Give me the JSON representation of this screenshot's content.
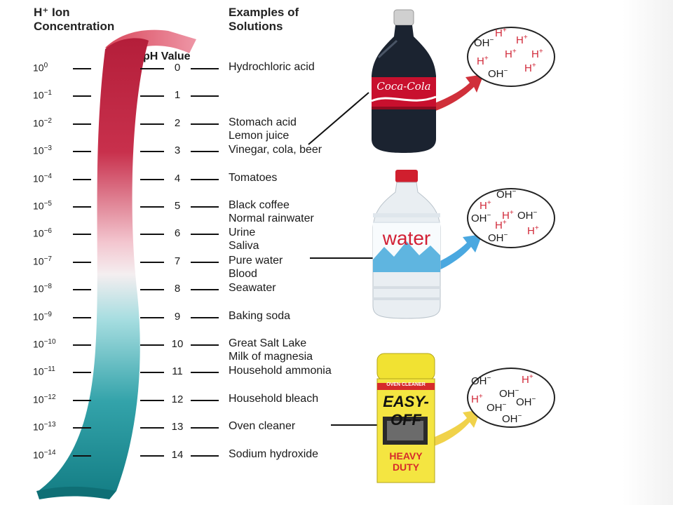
{
  "headers": {
    "h_ion_line1": "H⁺ Ion",
    "h_ion_line2": "Concentration",
    "examples_line1": "Examples of",
    "examples_line2": "Solutions",
    "ph_value": "pH Value"
  },
  "scale": [
    {
      "conc_exp": "0",
      "ph": "0",
      "examples": [
        "Hydrochloric acid"
      ]
    },
    {
      "conc_exp": "−1",
      "ph": "1",
      "examples": []
    },
    {
      "conc_exp": "−2",
      "ph": "2",
      "examples": [
        "Stomach acid",
        "Lemon juice"
      ]
    },
    {
      "conc_exp": "−3",
      "ph": "3",
      "examples": [
        "Vinegar, cola, beer"
      ]
    },
    {
      "conc_exp": "−4",
      "ph": "4",
      "examples": [
        "Tomatoes"
      ]
    },
    {
      "conc_exp": "−5",
      "ph": "5",
      "examples": [
        "Black coffee",
        "Normal rainwater"
      ]
    },
    {
      "conc_exp": "−6",
      "ph": "6",
      "examples": [
        "Urine",
        "Saliva"
      ]
    },
    {
      "conc_exp": "−7",
      "ph": "7",
      "examples": [
        "Pure water",
        "Blood"
      ]
    },
    {
      "conc_exp": "−8",
      "ph": "8",
      "examples": [
        "Seawater"
      ]
    },
    {
      "conc_exp": "−9",
      "ph": "9",
      "examples": [
        "Baking soda"
      ]
    },
    {
      "conc_exp": "−10",
      "ph": "10",
      "examples": [
        "Great Salt Lake",
        "Milk of magnesia"
      ]
    },
    {
      "conc_exp": "−11",
      "ph": "11",
      "examples": [
        "Household ammonia"
      ]
    },
    {
      "conc_exp": "−12",
      "ph": "12",
      "examples": [
        "Household bleach"
      ]
    },
    {
      "conc_exp": "−13",
      "ph": "13",
      "examples": [
        "Oven cleaner"
      ]
    },
    {
      "conc_exp": "−14",
      "ph": "14",
      "examples": [
        "Sodium hydroxide"
      ]
    }
  ],
  "conc_base": "10",
  "bottles": {
    "cola_logo": "Coca-Cola",
    "water_label": "water",
    "cleaner_brand": "EASY-OFF",
    "cleaner_sub": "HEAVY DUTY",
    "cleaner_top": "OVEN CLEANER"
  },
  "ions": {
    "h": "H",
    "oh": "OH",
    "plus": "+",
    "minus": "−"
  },
  "colors": {
    "acid": "#c2283f",
    "neutral": "#f2dde0",
    "base": "#1a8f94",
    "h_ion": "#d12a3a",
    "arrow_red": "#d0303a",
    "arrow_blue": "#4aa8e0",
    "arrow_yellow": "#f0d24a"
  }
}
